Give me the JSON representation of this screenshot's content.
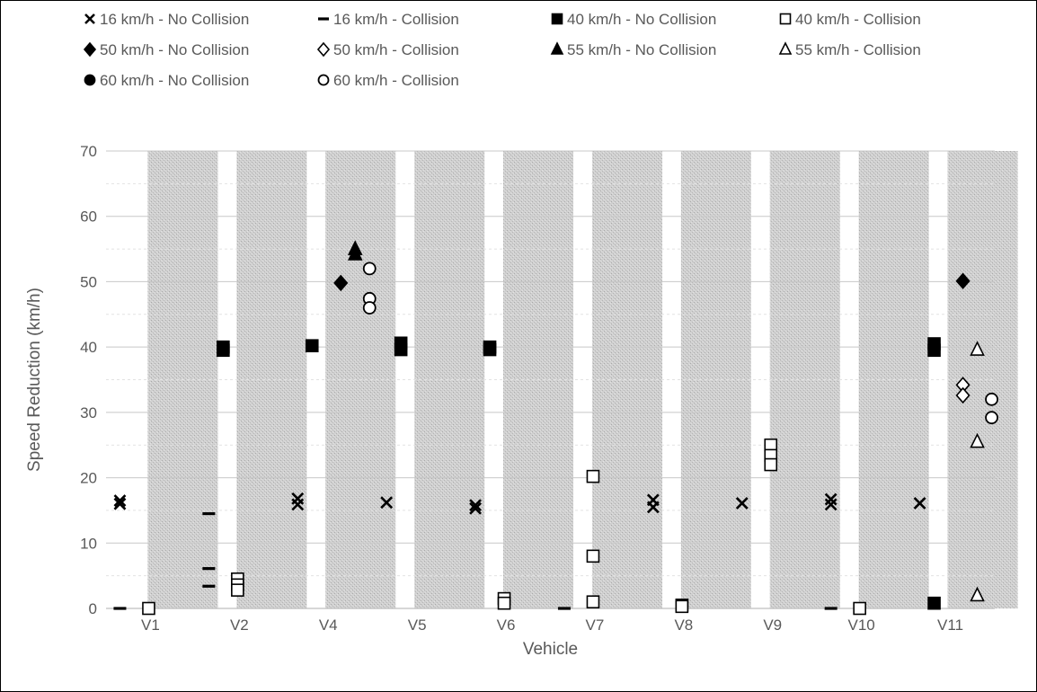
{
  "chart_data": {
    "type": "scatter",
    "title": "",
    "xlabel": "Vehicle",
    "ylabel": "Speed Reduction (km/h)",
    "ylim": [
      0,
      70
    ],
    "y_ticks": [
      0,
      10,
      20,
      30,
      40,
      50,
      60,
      70
    ],
    "categories": [
      "V1",
      "V2",
      "V4",
      "V5",
      "V6",
      "V7",
      "V8",
      "V9",
      "V10",
      "V11"
    ],
    "grid": "horizontal major and minor gridlines; alternating shaded vehicle bands",
    "legend_position": "top",
    "series": [
      {
        "name": "16 km/h - No Collision",
        "marker": "x",
        "filled": true,
        "slot": 0,
        "points": [
          [
            "V1",
            16.5
          ],
          [
            "V1",
            16
          ],
          [
            "V4",
            16.8
          ],
          [
            "V4",
            15.9
          ],
          [
            "V5",
            16.2
          ],
          [
            "V6",
            15.8
          ],
          [
            "V6",
            15.3
          ],
          [
            "V8",
            16.6
          ],
          [
            "V8",
            15.5
          ],
          [
            "V9",
            16.1
          ],
          [
            "V10",
            16.7
          ],
          [
            "V10",
            15.9
          ],
          [
            "V11",
            16.1
          ]
        ]
      },
      {
        "name": "16 km/h - Collision",
        "marker": "dash",
        "filled": true,
        "slot": 0,
        "points": [
          [
            "V1",
            0
          ],
          [
            "V2",
            14.5
          ],
          [
            "V2",
            6.1
          ],
          [
            "V2",
            3.4
          ],
          [
            "V7",
            0
          ],
          [
            "V10",
            0
          ]
        ]
      },
      {
        "name": "40 km/h - No Collision",
        "marker": "square",
        "filled": true,
        "slot": 1,
        "points": [
          [
            "V2",
            40
          ],
          [
            "V2",
            39.5
          ],
          [
            "V4",
            40.2
          ],
          [
            "V5",
            40.6
          ],
          [
            "V5",
            39.6
          ],
          [
            "V6",
            40
          ],
          [
            "V6",
            39.6
          ],
          [
            "V11",
            40.5
          ],
          [
            "V11",
            39.5
          ],
          [
            "V11",
            0.8
          ]
        ]
      },
      {
        "name": "40 km/h - Collision",
        "marker": "square",
        "filled": false,
        "slot": 2,
        "points": [
          [
            "V1",
            0
          ],
          [
            "V2",
            4.5
          ],
          [
            "V2",
            3.6
          ],
          [
            "V2",
            2.8
          ],
          [
            "V6",
            1.5
          ],
          [
            "V6",
            0.8
          ],
          [
            "V7",
            20.2
          ],
          [
            "V7",
            8
          ],
          [
            "V7",
            1
          ],
          [
            "V8",
            0.5
          ],
          [
            "V8",
            0.3
          ],
          [
            "V9",
            25
          ],
          [
            "V9",
            23.4
          ],
          [
            "V9",
            22
          ],
          [
            "V10",
            0
          ]
        ]
      },
      {
        "name": "50 km/h - No Collision",
        "marker": "diamond",
        "filled": true,
        "slot": 3,
        "points": [
          [
            "V4",
            49.8
          ],
          [
            "V11",
            50.1
          ]
        ]
      },
      {
        "name": "50 km/h - Collision",
        "marker": "diamond",
        "filled": false,
        "slot": 3,
        "points": [
          [
            "V11",
            34.2
          ],
          [
            "V11",
            32.6
          ]
        ]
      },
      {
        "name": "55 km/h - No Collision",
        "marker": "triangle",
        "filled": true,
        "slot": 4,
        "points": [
          [
            "V4",
            55
          ],
          [
            "V4",
            54.2
          ]
        ]
      },
      {
        "name": "55 km/h - Collision",
        "marker": "triangle",
        "filled": false,
        "slot": 4,
        "points": [
          [
            "V11",
            39.6
          ],
          [
            "V11",
            25.5
          ],
          [
            "V11",
            2
          ]
        ]
      },
      {
        "name": "60 km/h - No Collision",
        "marker": "circle",
        "filled": true,
        "slot": 5,
        "points": []
      },
      {
        "name": "60 km/h - Collision",
        "marker": "circle",
        "filled": false,
        "slot": 5,
        "points": [
          [
            "V4",
            52
          ],
          [
            "V4",
            47.4
          ],
          [
            "V4",
            46
          ],
          [
            "V11",
            32
          ],
          [
            "V11",
            29.2
          ]
        ]
      }
    ]
  }
}
